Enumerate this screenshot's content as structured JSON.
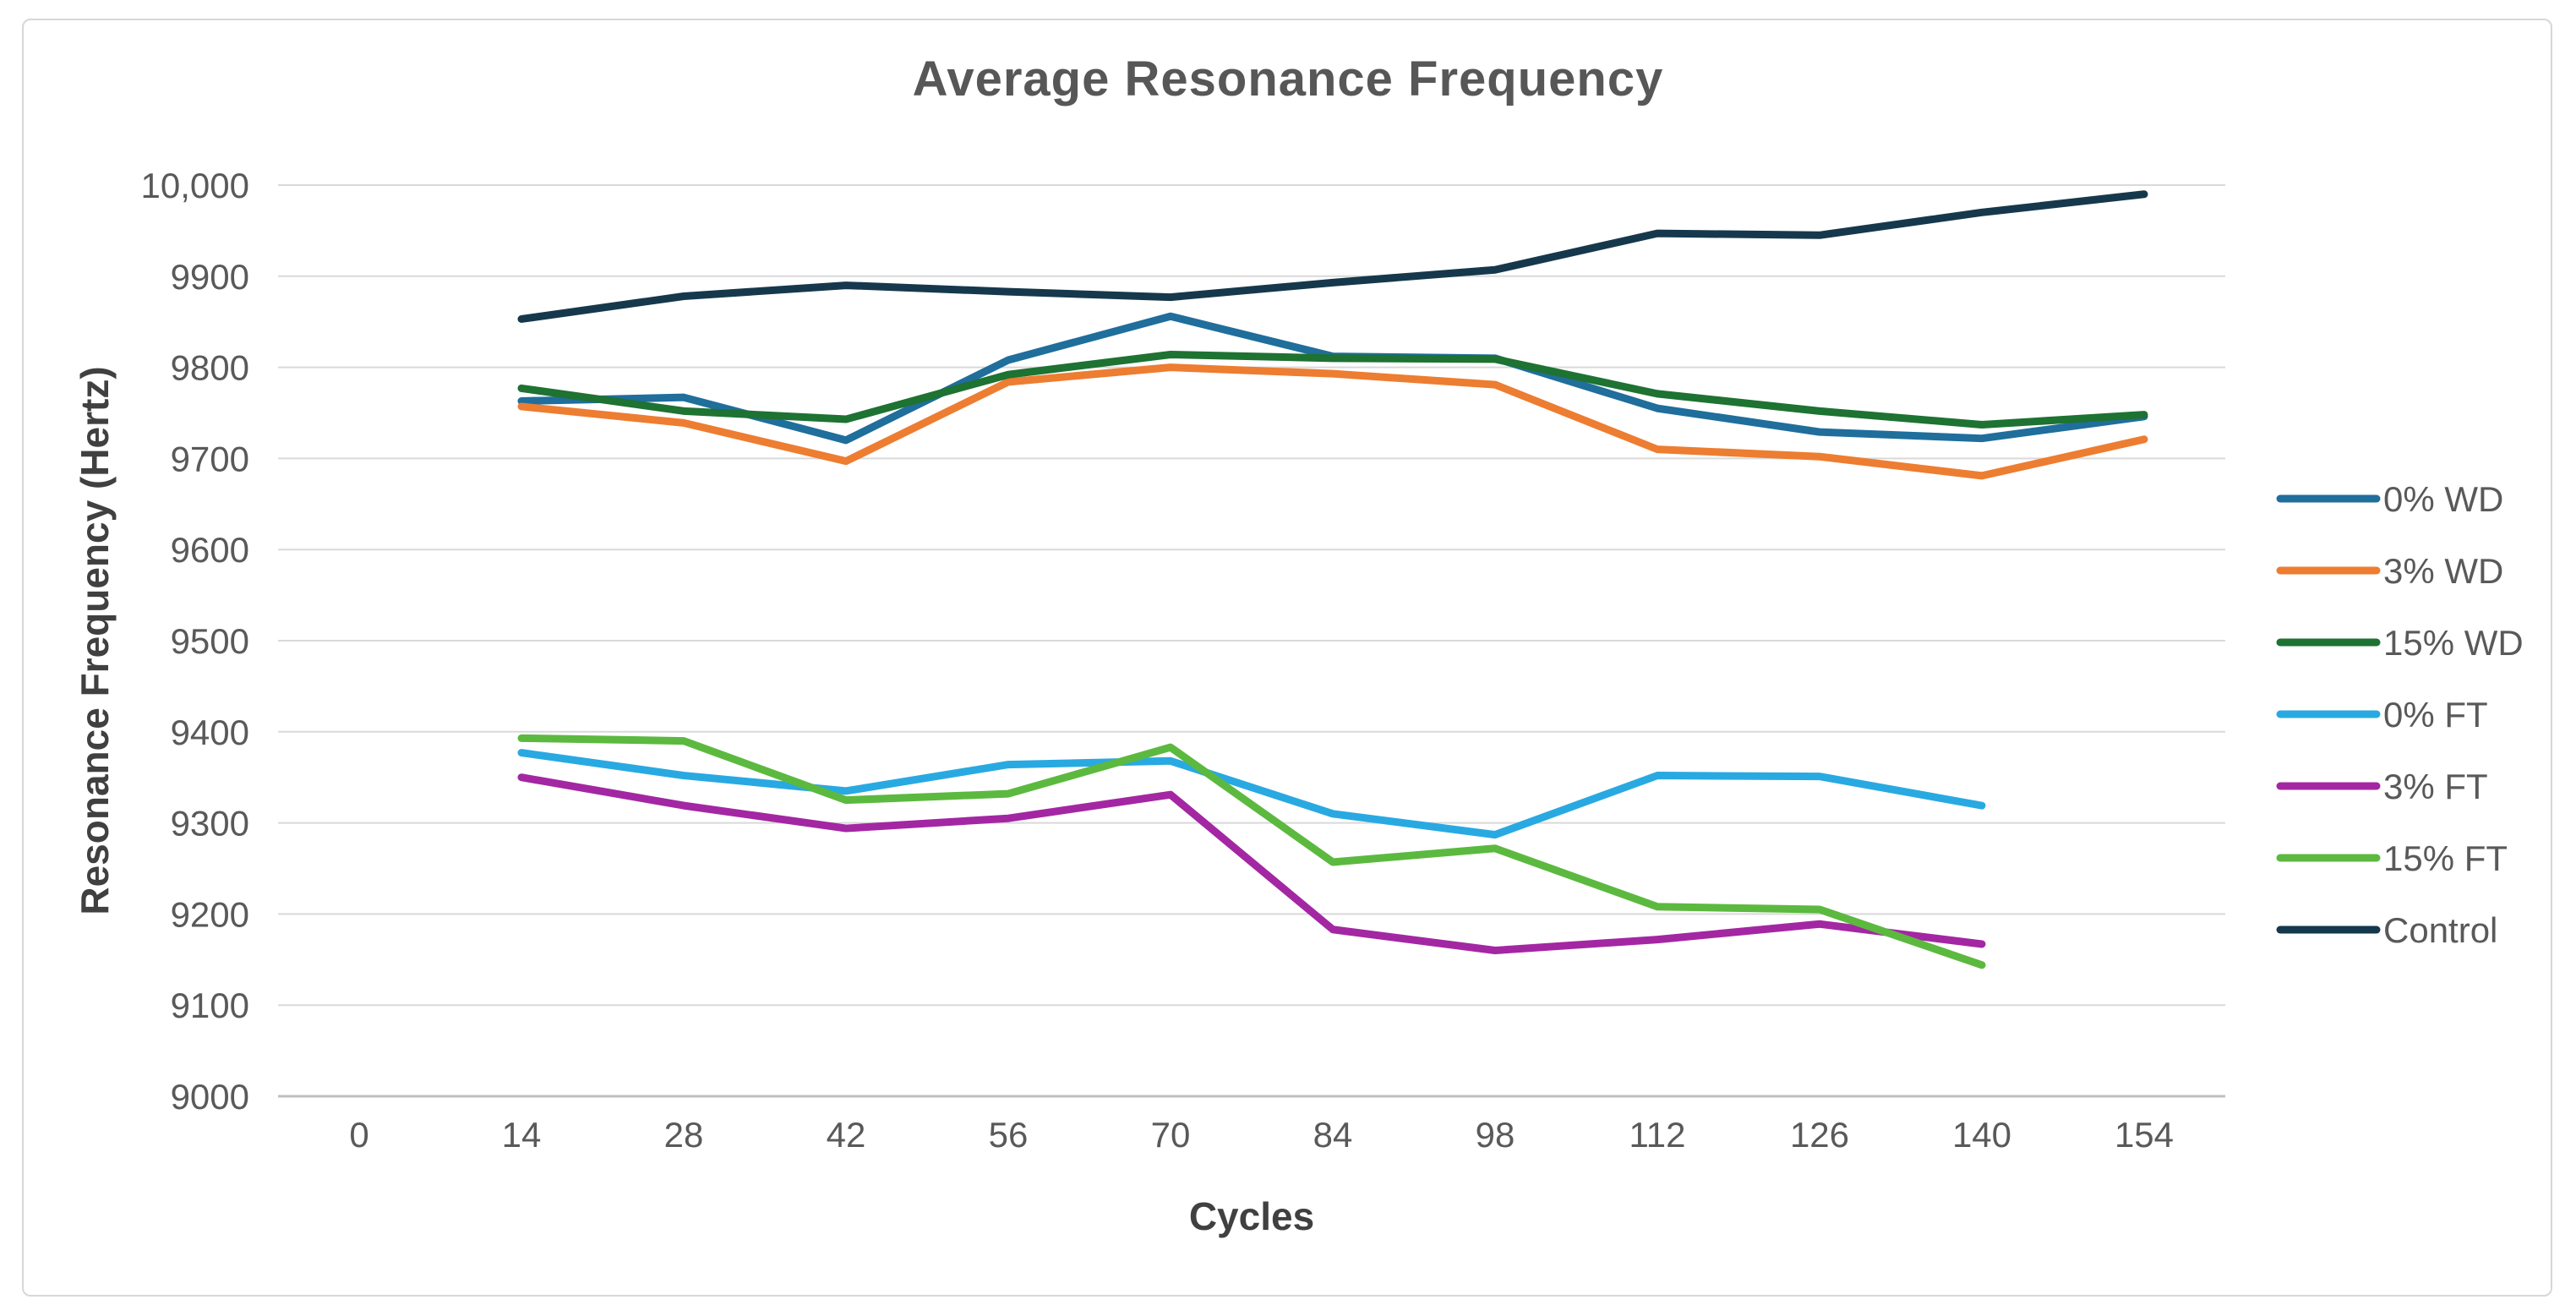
{
  "page": {
    "background": "#FFFFFF",
    "card_border_color": "#D8D6D6"
  },
  "chart_data": {
    "type": "line",
    "title": "Average Resonance Frequency",
    "xlabel": "Cycles",
    "ylabel": "Resonance Frequency (Hertz)",
    "categories": [
      "0",
      "14",
      "28",
      "42",
      "56",
      "70",
      "84",
      "98",
      "112",
      "126",
      "140",
      "154"
    ],
    "ylim": [
      9000,
      10000
    ],
    "ytick_step": 100,
    "ytick_labels": [
      "9000",
      "9100",
      "9200",
      "9300",
      "9400",
      "9500",
      "9600",
      "9700",
      "9800",
      "9900",
      "10,000"
    ],
    "grid": true,
    "legend_position": "right",
    "series": [
      {
        "name": "0% WD",
        "color": "#1F6E9C",
        "values": [
          null,
          9763,
          9767,
          9720,
          9808,
          9856,
          9812,
          9810,
          9755,
          9729,
          9722,
          9746
        ]
      },
      {
        "name": "3% WD",
        "color": "#ED7D31",
        "values": [
          null,
          9757,
          9739,
          9697,
          9784,
          9800,
          9793,
          9781,
          9710,
          9702,
          9681,
          9721
        ]
      },
      {
        "name": "15% WD",
        "color": "#1E7232",
        "values": [
          null,
          9777,
          9752,
          9743,
          9792,
          9814,
          9810,
          9809,
          9771,
          9752,
          9737,
          9748
        ]
      },
      {
        "name": "0% FT",
        "color": "#29A9E1",
        "values": [
          null,
          9377,
          9352,
          9335,
          9364,
          9368,
          9310,
          9287,
          9352,
          9351,
          9319,
          null
        ]
      },
      {
        "name": "3% FT",
        "color": "#A327A3",
        "values": [
          null,
          9350,
          9319,
          9294,
          9305,
          9331,
          9183,
          9160,
          9172,
          9189,
          9167,
          null
        ]
      },
      {
        "name": "15% FT",
        "color": "#5CB93F",
        "values": [
          null,
          9393,
          9390,
          9325,
          9332,
          9383,
          9257,
          9272,
          9208,
          9205,
          9144,
          null
        ]
      },
      {
        "name": "Control",
        "color": "#16384C",
        "values": [
          null,
          9853,
          9878,
          9890,
          9883,
          9877,
          9893,
          9907,
          9947,
          9945,
          9970,
          9990
        ]
      }
    ],
    "styles": {
      "grid_color": "#D9D9D9",
      "axis_color": "#BFBFBF",
      "text_color": "#595959",
      "line_width": 9
    }
  }
}
